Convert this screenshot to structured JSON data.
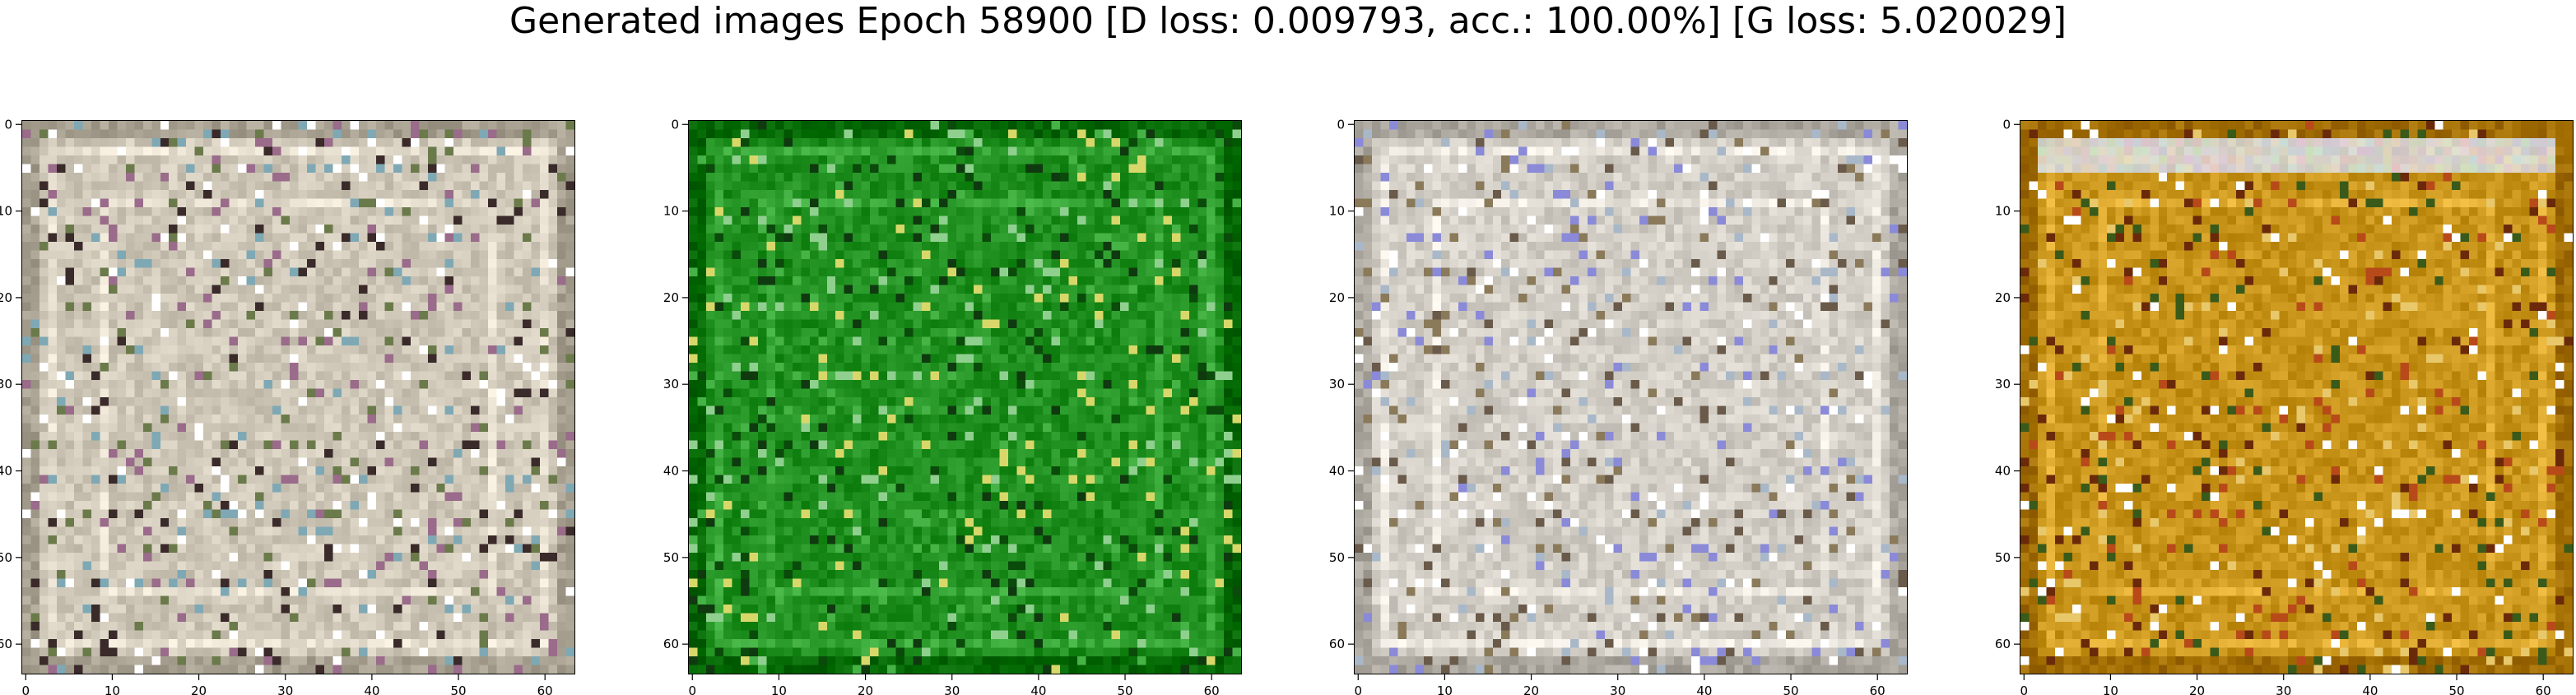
{
  "figure": {
    "title": "Generated images Epoch 58900 [D loss: 0.009793, acc.: 100.00%] [G loss: 5.020029]"
  },
  "axes": {
    "x_ticks": [
      "0",
      "10",
      "20",
      "30",
      "40",
      "50",
      "60"
    ],
    "y_ticks": [
      "0",
      "10",
      "20",
      "30",
      "40",
      "50",
      "60"
    ],
    "x_tick_values": [
      0,
      10,
      20,
      30,
      40,
      50,
      60
    ],
    "y_tick_values": [
      0,
      10,
      20,
      30,
      40,
      50,
      60
    ],
    "pixel_range": [
      -0.5,
      63.5
    ]
  },
  "images": [
    {
      "name": "generated-image-1",
      "palette": "pale",
      "base": "#cfc8b8",
      "accents": [
        "#3a2a2a",
        "#9a6b8a",
        "#7fa8b5",
        "#ffffff",
        "#6b7a4a"
      ]
    },
    {
      "name": "generated-image-2",
      "palette": "green",
      "base": "#1f8f1f",
      "accents": [
        "#0a4a0a",
        "#8fd08f",
        "#d8d86a",
        "#0f3a0f",
        "#46b346"
      ]
    },
    {
      "name": "generated-image-3",
      "palette": "pale",
      "base": "#d3cfc7",
      "accents": [
        "#8a7a5a",
        "#8a8ad8",
        "#ffffff",
        "#6a5a4a",
        "#a8b8c8"
      ]
    },
    {
      "name": "generated-image-4",
      "palette": "orange",
      "base": "#c8941a",
      "accents": [
        "#6a2a0a",
        "#e8c86a",
        "#3a5a1a",
        "#ffffff",
        "#b84a1a"
      ]
    }
  ]
}
